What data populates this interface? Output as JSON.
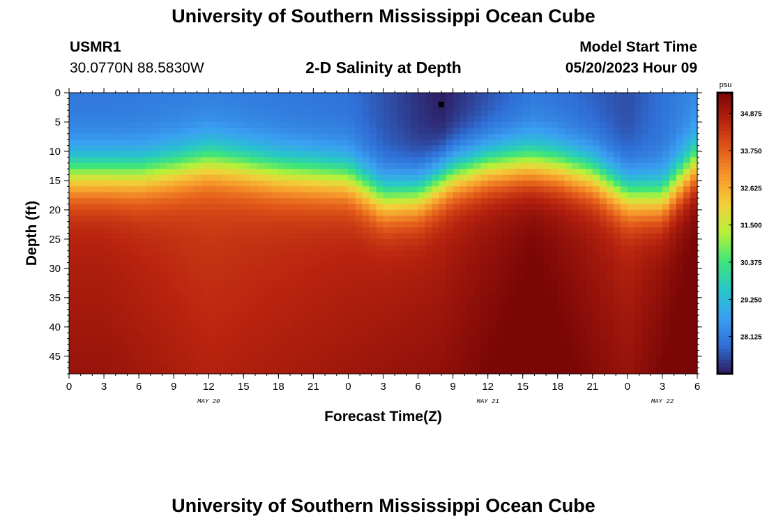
{
  "header": {
    "title": "University of Southern Mississippi Ocean Cube",
    "station": "USMR1",
    "coords": "30.0770N  88.5830W",
    "subtitle": "2-D Salinity at Depth",
    "model_start_label": "Model Start Time",
    "model_start_value": "05/20/2023 Hour 09"
  },
  "footer": {
    "title": "University of Southern Mississippi Ocean Cube"
  },
  "colors": {
    "colormap": [
      "#2e1a5e",
      "#2f6fd6",
      "#3aa0f2",
      "#27c7c8",
      "#3fe57a",
      "#b4f23a",
      "#f2d03a",
      "#f79a2b",
      "#e35a1a",
      "#b8230f",
      "#7a0606"
    ],
    "marker": "#000000"
  },
  "chart_data": {
    "type": "heatmap",
    "xlabel": "Forecast Time(Z)",
    "ylabel": "Depth (ft)",
    "x_ticks": [
      "0",
      "3",
      "6",
      "9",
      "12",
      "15",
      "18",
      "21",
      "0",
      "3",
      "6",
      "9",
      "12",
      "15",
      "18",
      "21",
      "0",
      "3",
      "6"
    ],
    "x_range_hours": [
      0,
      54
    ],
    "date_labels": [
      {
        "text": "MAY 20",
        "hour": 12
      },
      {
        "text": "MAY 21",
        "hour": 36
      },
      {
        "text": "MAY 22",
        "hour": 51
      }
    ],
    "y_ticks": [
      "0",
      "5",
      "10",
      "15",
      "20",
      "25",
      "30",
      "35",
      "40",
      "45"
    ],
    "y_range": [
      0,
      48
    ],
    "colorbar": {
      "unit": "psu",
      "ticks": [
        "34.875",
        "33.750",
        "32.625",
        "31.500",
        "30.375",
        "29.250",
        "28.125"
      ],
      "range": [
        27.0,
        35.5
      ]
    },
    "current_time_marker": {
      "hour": 32,
      "depth": 2
    },
    "mixed_layer_depth": {
      "hours": [
        0,
        3,
        6,
        9,
        12,
        15,
        18,
        21,
        24,
        27,
        30,
        33,
        36,
        39,
        42,
        45,
        48,
        51,
        54
      ],
      "depth_ft": [
        10.5,
        10.5,
        10.5,
        9.5,
        8.2,
        9.0,
        10.0,
        10.5,
        11.0,
        14.5,
        14.0,
        10.5,
        9.0,
        8.5,
        9.0,
        10.5,
        14.0,
        14.5,
        8.5
      ]
    },
    "profile_samples": [
      {
        "hour": 3,
        "surface": 28.0,
        "bottom": 34.6
      },
      {
        "hour": 12,
        "surface": 28.1,
        "bottom": 34.2
      },
      {
        "hour": 24,
        "surface": 27.9,
        "bottom": 34.5
      },
      {
        "hour": 32,
        "surface": 27.0,
        "bottom": 34.7
      },
      {
        "hour": 40,
        "surface": 28.0,
        "bottom": 35.3
      },
      {
        "hour": 48,
        "surface": 27.5,
        "bottom": 34.6
      },
      {
        "hour": 54,
        "surface": 28.3,
        "bottom": 35.4
      }
    ]
  }
}
